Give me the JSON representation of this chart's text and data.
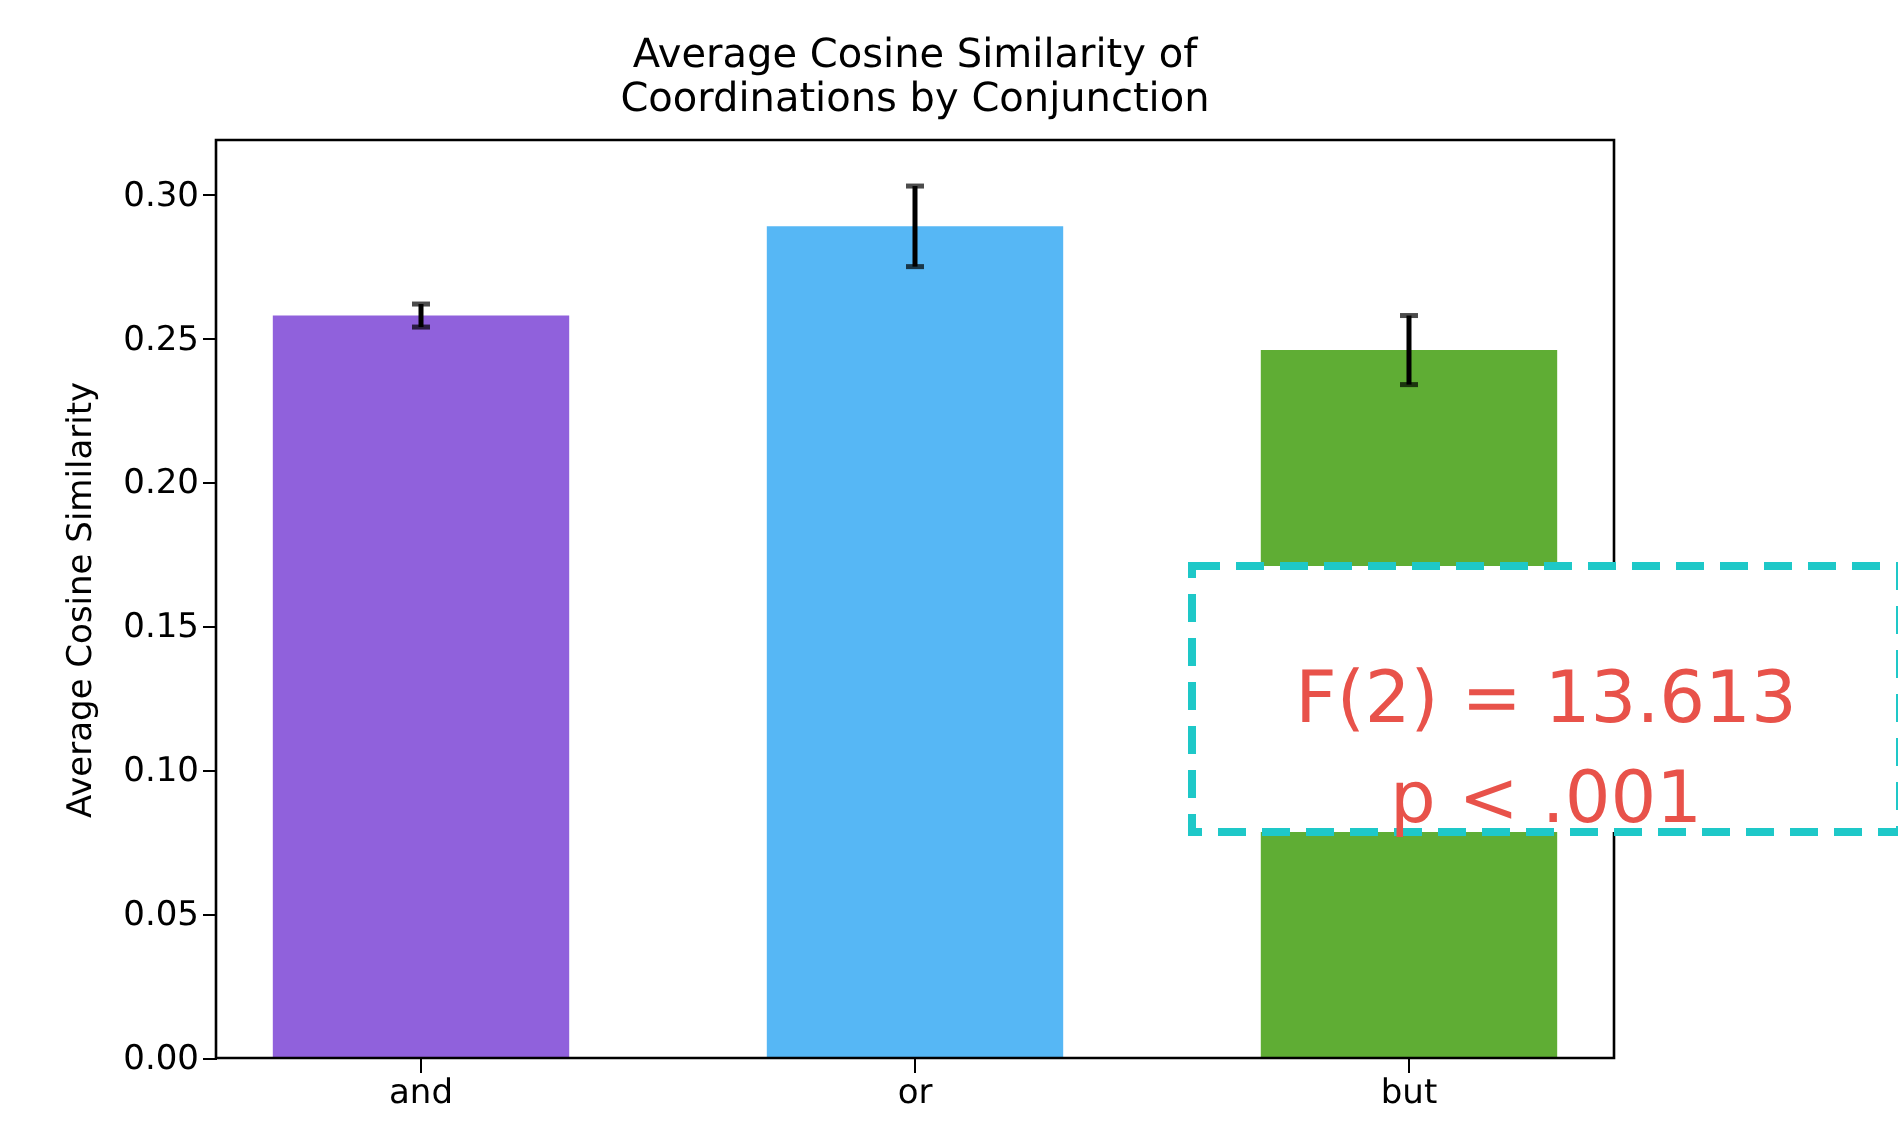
{
  "chart_data": {
    "type": "bar",
    "title": "Average Cosine Similarity of\nCoordinations by Conjunction",
    "ylabel": "Average Cosine Similarity",
    "categories": [
      "and",
      "or",
      "but"
    ],
    "values": [
      0.258,
      0.289,
      0.246
    ],
    "errors": [
      0.004,
      0.014,
      0.012
    ],
    "colors": [
      "#9061dc",
      "#56b7f5",
      "#5fad34"
    ],
    "ylim": [
      0,
      0.319
    ],
    "yticks": [
      {
        "value": 0,
        "label": "0.00"
      },
      {
        "value": 0.05,
        "label": "0.05"
      },
      {
        "value": 0.1,
        "label": "0.10"
      },
      {
        "value": 0.15,
        "label": "0.15"
      },
      {
        "value": 0.2,
        "label": "0.20"
      },
      {
        "value": 0.25,
        "label": "0.25"
      },
      {
        "value": 0.3,
        "label": "0.30"
      }
    ],
    "grid": false,
    "annotations": [
      "F(2) = 13.613\np < .001"
    ]
  }
}
